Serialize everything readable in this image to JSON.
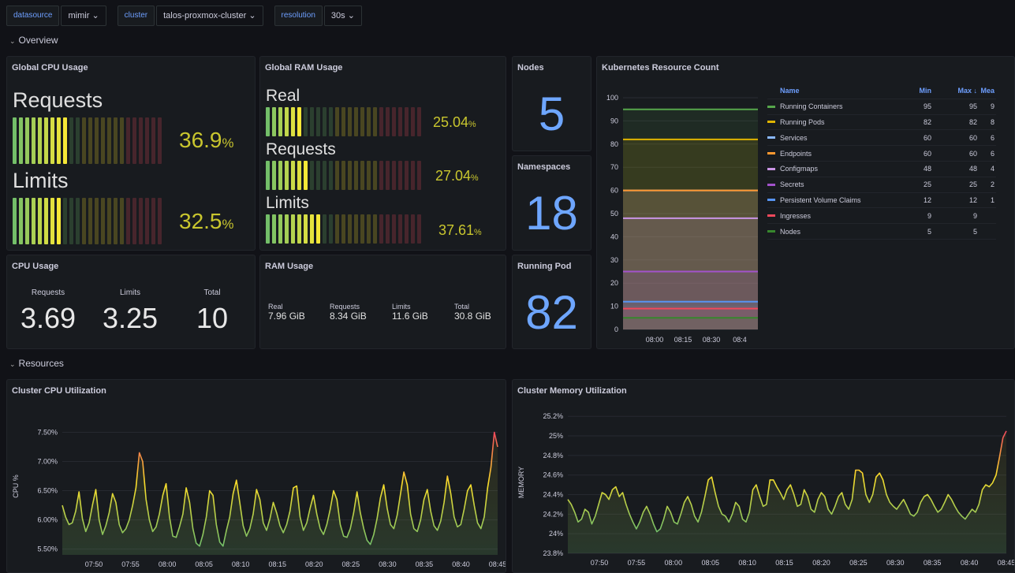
{
  "variables": [
    {
      "label": "datasource",
      "value": "mimir"
    },
    {
      "label": "cluster",
      "value": "talos-proxmox-cluster"
    },
    {
      "label": "resolution",
      "value": "30s"
    }
  ],
  "rows": {
    "overview": "Overview",
    "resources": "Resources"
  },
  "cpu_usage_gauge": {
    "title": "Global CPU Usage",
    "bars": [
      {
        "label": "Requests",
        "value": "36.9",
        "unit": "%",
        "fraction": 0.369
      },
      {
        "label": "Limits",
        "value": "32.5",
        "unit": "%",
        "fraction": 0.325
      }
    ]
  },
  "ram_usage_gauge": {
    "title": "Global RAM Usage",
    "bars": [
      {
        "label": "Real",
        "value": "25.04",
        "unit": "%",
        "fraction": 0.2504
      },
      {
        "label": "Requests",
        "value": "27.04",
        "unit": "%",
        "fraction": 0.2704
      },
      {
        "label": "Limits",
        "value": "37.61",
        "unit": "%",
        "fraction": 0.3761
      }
    ]
  },
  "nodes": {
    "title": "Nodes",
    "value": "5"
  },
  "namespaces": {
    "title": "Namespaces",
    "value": "18"
  },
  "running_pod": {
    "title": "Running Pod",
    "value": "82"
  },
  "cpu_usage": {
    "title": "CPU Usage",
    "stats": [
      {
        "label": "Requests",
        "value": "3.69"
      },
      {
        "label": "Limits",
        "value": "3.25"
      },
      {
        "label": "Total",
        "value": "10"
      }
    ]
  },
  "ram_usage": {
    "title": "RAM Usage",
    "stats": [
      {
        "label": "Real",
        "value": "7.96 GiB"
      },
      {
        "label": "Requests",
        "value": "8.34 GiB"
      },
      {
        "label": "Limits",
        "value": "11.6 GiB"
      },
      {
        "label": "Total",
        "value": "30.8 GiB"
      }
    ]
  },
  "k8s_resource_count": {
    "title": "Kubernetes Resource Count",
    "legend_headers": {
      "name": "Name",
      "min": "Min",
      "max": "Max ↓",
      "mean": "Mea"
    }
  },
  "cpu_util": {
    "title": "Cluster CPU Utilization"
  },
  "mem_util": {
    "title": "Cluster Memory Utilization"
  },
  "chart_data": [
    {
      "type": "area",
      "title": "Kubernetes Resource Count",
      "x_ticks": [
        "08:00",
        "08:15",
        "08:30",
        "08:4"
      ],
      "y_ticks": [
        "0",
        "10",
        "20",
        "30",
        "40",
        "50",
        "60",
        "70",
        "80",
        "90",
        "100"
      ],
      "ylim": [
        0,
        100
      ],
      "series": [
        {
          "name": "Running Containers",
          "color": "#56a64b",
          "min": "95",
          "max": "95",
          "mean": "9",
          "value": 95
        },
        {
          "name": "Running Pods",
          "color": "#e0b400",
          "min": "82",
          "max": "82",
          "mean": "8",
          "value": 82
        },
        {
          "name": "Services",
          "color": "#8ab8ff",
          "min": "60",
          "max": "60",
          "mean": "6",
          "value": 60
        },
        {
          "name": "Endpoints",
          "color": "#ff9830",
          "min": "60",
          "max": "60",
          "mean": "6",
          "value": 60
        },
        {
          "name": "Configmaps",
          "color": "#ca95e5",
          "min": "48",
          "max": "48",
          "mean": "4",
          "value": 48
        },
        {
          "name": "Secrets",
          "color": "#a352cc",
          "min": "25",
          "max": "25",
          "mean": "2",
          "value": 25
        },
        {
          "name": "Persistent Volume Claims",
          "color": "#5794f2",
          "min": "12",
          "max": "12",
          "mean": "1",
          "value": 12
        },
        {
          "name": "Ingresses",
          "color": "#f2495c",
          "min": "9",
          "max": "9",
          "mean": "",
          "value": 9
        },
        {
          "name": "Nodes",
          "color": "#37872d",
          "min": "5",
          "max": "5",
          "mean": "",
          "value": 5
        }
      ]
    },
    {
      "type": "line",
      "title": "Cluster CPU Utilization",
      "ylabel": "CPU %",
      "y_ticks": [
        "5.50%",
        "6.00%",
        "6.50%",
        "7.00%",
        "7.50%"
      ],
      "y_tick_values": [
        5.5,
        6.0,
        6.5,
        7.0,
        7.5
      ],
      "ylim": [
        5.4,
        7.75
      ],
      "x_ticks": [
        "07:50",
        "07:55",
        "08:00",
        "08:05",
        "08:10",
        "08:15",
        "08:20",
        "08:25",
        "08:30",
        "08:35",
        "08:40",
        "08:45"
      ],
      "values": [
        6.25,
        6.05,
        5.92,
        5.95,
        6.15,
        6.48,
        6.02,
        5.8,
        5.95,
        6.25,
        6.52,
        6.0,
        5.75,
        5.9,
        6.12,
        6.45,
        6.3,
        5.92,
        5.78,
        5.85,
        6.0,
        6.25,
        6.55,
        7.15,
        7.0,
        6.35,
        6.0,
        5.8,
        5.88,
        6.1,
        6.42,
        6.62,
        6.05,
        5.72,
        5.7,
        5.88,
        6.1,
        6.55,
        6.3,
        5.85,
        5.6,
        5.55,
        5.75,
        6.05,
        6.5,
        6.42,
        5.92,
        5.62,
        5.55,
        5.82,
        6.05,
        6.45,
        6.68,
        6.3,
        5.9,
        5.72,
        5.85,
        6.1,
        6.52,
        6.35,
        5.95,
        5.82,
        6.02,
        6.3,
        6.12,
        5.9,
        5.78,
        5.92,
        6.15,
        6.55,
        6.58,
        6.05,
        5.82,
        5.95,
        6.2,
        6.42,
        6.1,
        5.85,
        5.75,
        5.92,
        6.18,
        6.5,
        6.35,
        5.92,
        5.72,
        5.7,
        5.85,
        6.12,
        6.48,
        6.12,
        5.85,
        5.65,
        5.58,
        5.75,
        6.02,
        6.38,
        6.6,
        6.2,
        5.92,
        5.85,
        6.08,
        6.45,
        6.82,
        6.6,
        6.1,
        5.85,
        5.8,
        6.0,
        6.35,
        6.52,
        6.15,
        5.9,
        5.82,
        5.98,
        6.3,
        6.75,
        6.45,
        6.05,
        5.88,
        5.92,
        6.18,
        6.5,
        6.6,
        6.25,
        5.95,
        5.85,
        6.05,
        6.55,
        6.9,
        7.5,
        7.25
      ]
    },
    {
      "type": "line",
      "title": "Cluster Memory Utilization",
      "ylabel": "MEMORY",
      "y_ticks": [
        "23.8%",
        "24%",
        "24.2%",
        "24.4%",
        "24.6%",
        "24.8%",
        "25%",
        "25.2%"
      ],
      "y_tick_values": [
        23.8,
        24.0,
        24.2,
        24.4,
        24.6,
        24.8,
        25.0,
        25.2
      ],
      "ylim": [
        23.8,
        25.25
      ],
      "x_ticks": [
        "07:50",
        "07:55",
        "08:00",
        "08:05",
        "08:10",
        "08:15",
        "08:20",
        "08:25",
        "08:30",
        "08:35",
        "08:40",
        "08:45"
      ],
      "values": [
        24.35,
        24.3,
        24.22,
        24.12,
        24.15,
        24.25,
        24.22,
        24.1,
        24.18,
        24.3,
        24.42,
        24.4,
        24.35,
        24.45,
        24.48,
        24.38,
        24.42,
        24.3,
        24.2,
        24.12,
        24.05,
        24.12,
        24.22,
        24.28,
        24.2,
        24.1,
        24.02,
        24.05,
        24.15,
        24.28,
        24.22,
        24.12,
        24.1,
        24.2,
        24.32,
        24.38,
        24.3,
        24.18,
        24.12,
        24.22,
        24.38,
        24.55,
        24.58,
        24.42,
        24.28,
        24.2,
        24.18,
        24.12,
        24.2,
        24.32,
        24.28,
        24.15,
        24.12,
        24.22,
        24.45,
        24.5,
        24.38,
        24.28,
        24.3,
        24.55,
        24.55,
        24.48,
        24.42,
        24.35,
        24.45,
        24.5,
        24.4,
        24.28,
        24.3,
        24.45,
        24.38,
        24.25,
        24.22,
        24.35,
        24.42,
        24.38,
        24.25,
        24.2,
        24.28,
        24.38,
        24.42,
        24.3,
        24.25,
        24.35,
        24.65,
        24.65,
        24.62,
        24.4,
        24.32,
        24.4,
        24.58,
        24.62,
        24.55,
        24.4,
        24.32,
        24.28,
        24.25,
        24.3,
        24.35,
        24.28,
        24.2,
        24.18,
        24.22,
        24.32,
        24.38,
        24.4,
        24.35,
        24.28,
        24.22,
        24.25,
        24.32,
        24.4,
        24.35,
        24.28,
        24.22,
        24.18,
        24.15,
        24.2,
        24.25,
        24.22,
        24.3,
        24.45,
        24.5,
        24.48,
        24.52,
        24.6,
        24.78,
        24.98,
        25.05
      ]
    }
  ]
}
